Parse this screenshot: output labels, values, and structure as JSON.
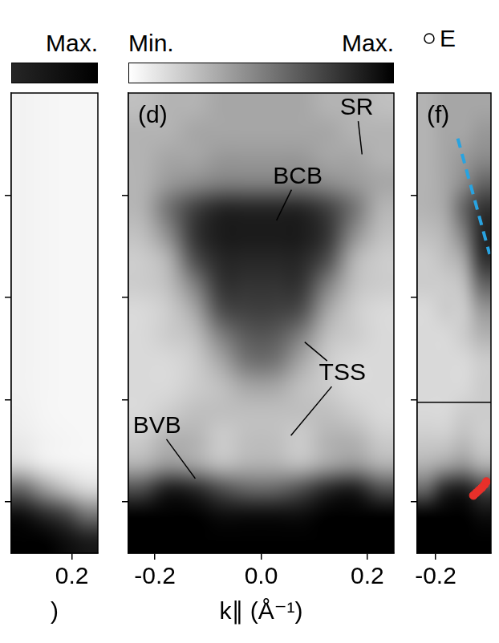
{
  "chart_data": [
    {
      "type": "heatmap",
      "x_label": ")",
      "xlim": [
        0.06,
        0.26
      ],
      "ylim": [
        -0.7,
        0.2
      ],
      "xticks": [
        0.2
      ],
      "yticks": [
        -0.6,
        -0.4,
        -0.2,
        0
      ],
      "tick_labels": "x",
      "x": [
        0.085,
        0.135,
        0.185,
        0.235
      ],
      "y": [
        0.175,
        0.125,
        0.075,
        0.025,
        -0.025,
        -0.075,
        -0.125,
        -0.175,
        -0.225,
        -0.275,
        -0.325,
        -0.375,
        -0.425,
        -0.475,
        -0.525,
        -0.575,
        -0.625,
        -0.675
      ],
      "cells": [
        [
          0.05,
          0.04,
          0.03,
          0.03
        ],
        [
          0.05,
          0.04,
          0.03,
          0.03
        ],
        [
          0.05,
          0.04,
          0.03,
          0.03
        ],
        [
          0.05,
          0.04,
          0.03,
          0.03
        ],
        [
          0.05,
          0.04,
          0.03,
          0.03
        ],
        [
          0.05,
          0.04,
          0.03,
          0.03
        ],
        [
          0.05,
          0.04,
          0.03,
          0.03
        ],
        [
          0.05,
          0.04,
          0.03,
          0.03
        ],
        [
          0.05,
          0.04,
          0.03,
          0.03
        ],
        [
          0.05,
          0.04,
          0.03,
          0.03
        ],
        [
          0.05,
          0.04,
          0.03,
          0.03
        ],
        [
          0.05,
          0.04,
          0.03,
          0.03
        ],
        [
          0.06,
          0.04,
          0.03,
          0.03
        ],
        [
          0.08,
          0.05,
          0.04,
          0.03
        ],
        [
          0.15,
          0.08,
          0.05,
          0.04
        ],
        [
          0.6,
          0.4,
          0.25,
          0.15
        ],
        [
          0.95,
          0.85,
          0.75,
          0.55
        ],
        [
          1,
          1,
          0.95,
          0.9
        ]
      ],
      "cmap": {
        "range": [
          0,
          1
        ],
        "colors": [
          "#ffffff",
          "#000000"
        ]
      },
      "colorbar": {
        "range": [
          0.85,
          1
        ],
        "ticks": [
          {
            "value": 1,
            "label": "Max."
          }
        ]
      }
    },
    {
      "type": "heatmap",
      "panel": "(d)",
      "x_label": "k∥ (Å⁻¹)",
      "xlim": [
        -0.25,
        0.25
      ],
      "ylim": [
        -0.7,
        0.2
      ],
      "xticks": [
        -0.2,
        {
          "value": 0,
          "label": "0.0"
        },
        0.2
      ],
      "yticks": [
        -0.6,
        -0.4,
        -0.2,
        0
      ],
      "tick_labels": "x",
      "x": [
        -0.225,
        -0.175,
        -0.125,
        -0.075,
        -0.025,
        0.025,
        0.075,
        0.125,
        0.175,
        0.225
      ],
      "y": [
        0.175,
        0.125,
        0.075,
        0.025,
        -0.025,
        -0.075,
        -0.125,
        -0.175,
        -0.225,
        -0.275,
        -0.325,
        -0.375,
        -0.425,
        -0.475,
        -0.525,
        -0.575,
        -0.625,
        -0.675
      ],
      "cells": [
        [
          0.25,
          0.3,
          0.3,
          0.35,
          0.35,
          0.35,
          0.35,
          0.3,
          0.3,
          0.25
        ],
        [
          0.3,
          0.3,
          0.35,
          0.35,
          0.35,
          0.35,
          0.35,
          0.35,
          0.3,
          0.3
        ],
        [
          0.3,
          0.35,
          0.35,
          0.4,
          0.4,
          0.4,
          0.4,
          0.35,
          0.35,
          0.3
        ],
        [
          0.3,
          0.4,
          0.45,
          0.5,
          0.5,
          0.5,
          0.5,
          0.45,
          0.4,
          0.35
        ],
        [
          0.3,
          0.55,
          0.75,
          0.85,
          0.85,
          0.85,
          0.85,
          0.75,
          0.55,
          0.3
        ],
        [
          0.25,
          0.45,
          0.8,
          0.9,
          0.9,
          0.9,
          0.9,
          0.8,
          0.45,
          0.25
        ],
        [
          0.2,
          0.3,
          0.7,
          0.85,
          0.85,
          0.85,
          0.85,
          0.7,
          0.3,
          0.2
        ],
        [
          0.2,
          0.25,
          0.5,
          0.8,
          0.8,
          0.8,
          0.8,
          0.5,
          0.25,
          0.2
        ],
        [
          0.15,
          0.2,
          0.35,
          0.7,
          0.75,
          0.75,
          0.7,
          0.35,
          0.2,
          0.15
        ],
        [
          0.15,
          0.2,
          0.25,
          0.5,
          0.65,
          0.65,
          0.5,
          0.25,
          0.2,
          0.15
        ],
        [
          0.15,
          0.15,
          0.2,
          0.35,
          0.55,
          0.55,
          0.35,
          0.2,
          0.15,
          0.15
        ],
        [
          0.15,
          0.15,
          0.2,
          0.25,
          0.35,
          0.35,
          0.25,
          0.2,
          0.15,
          0.15
        ],
        [
          0.15,
          0.2,
          0.25,
          0.25,
          0.25,
          0.25,
          0.25,
          0.25,
          0.2,
          0.15
        ],
        [
          0.2,
          0.3,
          0.3,
          0.2,
          0.25,
          0.25,
          0.2,
          0.3,
          0.3,
          0.2
        ],
        [
          0.3,
          0.4,
          0.35,
          0.25,
          0.3,
          0.3,
          0.25,
          0.35,
          0.4,
          0.3
        ],
        [
          0.7,
          0.9,
          0.85,
          0.7,
          0.6,
          0.6,
          0.7,
          0.85,
          0.9,
          0.7
        ],
        [
          1,
          1,
          1,
          0.95,
          0.95,
          0.95,
          0.95,
          1,
          1,
          1
        ],
        [
          1,
          1,
          1,
          1,
          1,
          1,
          1,
          1,
          1,
          1
        ]
      ],
      "cmap": {
        "range": [
          0,
          1
        ],
        "colors": [
          "#ffffff",
          "#000000"
        ]
      },
      "colorbar": {
        "range": [
          0,
          1
        ],
        "ticks": [
          {
            "value": 0,
            "label": "Min."
          },
          {
            "value": 1,
            "label": "Max."
          }
        ]
      },
      "annotations": [
        {
          "text": "SR",
          "x": 0.18,
          "y": 0.17,
          "targets": [
            [
              0.19,
              0.08
            ]
          ]
        },
        {
          "text": "BCB",
          "x": 0.069,
          "y": 0.036,
          "targets": [
            [
              0.029,
              -0.049
            ]
          ]
        },
        {
          "text": "TSS",
          "x": 0.153,
          "y": -0.349,
          "targets": [
            [
              0.082,
              -0.287
            ],
            [
              0.056,
              -0.47
            ]
          ]
        },
        {
          "text": "BVB",
          "x": -0.196,
          "y": -0.452,
          "targets": [
            [
              -0.124,
              -0.554
            ]
          ]
        }
      ]
    },
    {
      "type": "heatmap",
      "panel": "(f)",
      "xlim": [
        -0.24,
        -0.08
      ],
      "ylim": [
        -0.7,
        0.2
      ],
      "xticks": [
        -0.2
      ],
      "yticks": [
        -0.6,
        -0.4,
        -0.2,
        0
      ],
      "tick_labels": "x",
      "legend": "top",
      "x": [
        -0.22,
        -0.18,
        -0.14,
        -0.1
      ],
      "y": [
        0.175,
        0.125,
        0.075,
        0.025,
        -0.025,
        -0.075,
        -0.125,
        -0.175,
        -0.225,
        -0.275,
        -0.325,
        -0.375,
        -0.425,
        -0.475,
        -0.525,
        -0.575,
        -0.625,
        -0.675
      ],
      "cells": [
        [
          0.3,
          0.35,
          0.35,
          0.35
        ],
        [
          0.3,
          0.35,
          0.35,
          0.4
        ],
        [
          0.3,
          0.35,
          0.4,
          0.45
        ],
        [
          0.3,
          0.35,
          0.45,
          0.6
        ],
        [
          0.3,
          0.35,
          0.6,
          0.8
        ],
        [
          0.25,
          0.3,
          0.5,
          0.85
        ],
        [
          0.2,
          0.25,
          0.35,
          0.8
        ],
        [
          0.2,
          0.2,
          0.25,
          0.6
        ],
        [
          0.15,
          0.2,
          0.2,
          0.4
        ],
        [
          0.15,
          0.15,
          0.2,
          0.3
        ],
        [
          0.15,
          0.15,
          0.15,
          0.2
        ],
        [
          0.15,
          0.15,
          0.15,
          0.2
        ],
        [
          0.15,
          0.15,
          0.2,
          0.2
        ],
        [
          0.2,
          0.2,
          0.25,
          0.2
        ],
        [
          0.3,
          0.35,
          0.4,
          0.3
        ],
        [
          0.6,
          0.85,
          0.9,
          0.75
        ],
        [
          1,
          1,
          1,
          0.95
        ],
        [
          1,
          1,
          1,
          1
        ]
      ],
      "cmap": {
        "range": [
          0,
          1
        ],
        "colors": [
          "#ffffff",
          "#000000"
        ]
      },
      "series": [
        {
          "name": "E",
          "type": "scatter",
          "marker": "circle",
          "color": "#000000",
          "x": [],
          "values": []
        },
        {
          "type": "line",
          "line_style": "dashed",
          "color": "#29a3e0",
          "x": [
            -0.152,
            -0.083
          ],
          "values": [
            0.111,
            -0.115
          ]
        },
        {
          "type": "line",
          "line_style": "solid",
          "color": "#000000",
          "x": [
            -0.24,
            -0.08
          ],
          "values": [
            -0.405,
            -0.405
          ]
        },
        {
          "type": "scatter",
          "marker": "dot",
          "color": "#e8302a",
          "x": [
            -0.118,
            -0.112,
            -0.106,
            -0.1,
            -0.094,
            -0.09
          ],
          "values": [
            -0.587,
            -0.582,
            -0.577,
            -0.572,
            -0.566,
            -0.56
          ]
        }
      ]
    }
  ]
}
